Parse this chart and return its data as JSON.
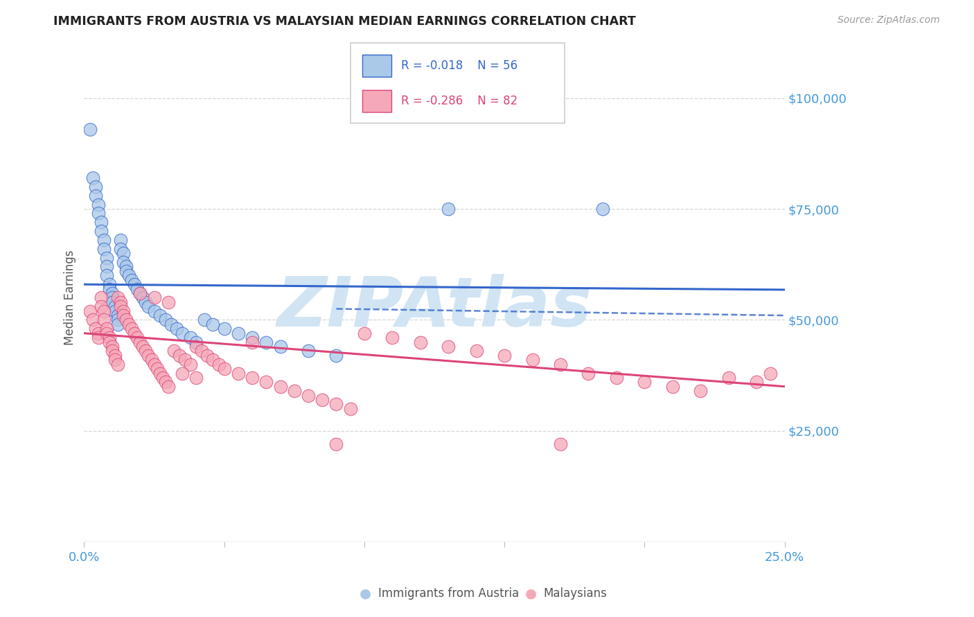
{
  "title": "IMMIGRANTS FROM AUSTRIA VS MALAYSIAN MEDIAN EARNINGS CORRELATION CHART",
  "source": "Source: ZipAtlas.com",
  "ylabel": "Median Earnings",
  "right_ytick_labels": [
    "$25,000",
    "$50,000",
    "$75,000",
    "$100,000"
  ],
  "right_ytick_values": [
    25000,
    50000,
    75000,
    100000
  ],
  "xlim": [
    0.0,
    0.25
  ],
  "ylim": [
    0,
    110000
  ],
  "austria_R": -0.018,
  "austria_N": 56,
  "malaysia_R": -0.286,
  "malaysia_N": 82,
  "austria_color": "#aac8e8",
  "austria_line_color": "#3366cc",
  "malaysia_color": "#f5a8b8",
  "malaysia_line_color": "#dd4477",
  "background_color": "#ffffff",
  "grid_color": "#cccccc",
  "title_color": "#222222",
  "axis_label_color": "#4499dd",
  "watermark_color": "#d0e4f4",
  "austria_x": [
    0.002,
    0.003,
    0.004,
    0.004,
    0.005,
    0.005,
    0.006,
    0.006,
    0.007,
    0.007,
    0.008,
    0.008,
    0.008,
    0.009,
    0.009,
    0.01,
    0.01,
    0.01,
    0.011,
    0.011,
    0.012,
    0.012,
    0.012,
    0.013,
    0.013,
    0.014,
    0.014,
    0.015,
    0.015,
    0.016,
    0.017,
    0.018,
    0.019,
    0.02,
    0.021,
    0.022,
    0.023,
    0.025,
    0.027,
    0.029,
    0.031,
    0.033,
    0.035,
    0.038,
    0.04,
    0.043,
    0.046,
    0.05,
    0.055,
    0.06,
    0.065,
    0.07,
    0.08,
    0.09,
    0.13,
    0.185
  ],
  "austria_y": [
    93000,
    82000,
    80000,
    78000,
    76000,
    74000,
    72000,
    70000,
    68000,
    66000,
    64000,
    62000,
    60000,
    58000,
    57000,
    56000,
    55000,
    54000,
    53000,
    52000,
    51000,
    50000,
    49000,
    68000,
    66000,
    65000,
    63000,
    62000,
    61000,
    60000,
    59000,
    58000,
    57000,
    56000,
    55000,
    54000,
    53000,
    52000,
    51000,
    50000,
    49000,
    48000,
    47000,
    46000,
    45000,
    50000,
    49000,
    48000,
    47000,
    46000,
    45000,
    44000,
    43000,
    42000,
    75000,
    75000
  ],
  "malaysia_x": [
    0.002,
    0.003,
    0.004,
    0.005,
    0.005,
    0.006,
    0.006,
    0.007,
    0.007,
    0.008,
    0.008,
    0.009,
    0.009,
    0.01,
    0.01,
    0.011,
    0.011,
    0.012,
    0.012,
    0.013,
    0.013,
    0.014,
    0.014,
    0.015,
    0.016,
    0.017,
    0.018,
    0.019,
    0.02,
    0.021,
    0.022,
    0.023,
    0.024,
    0.025,
    0.026,
    0.027,
    0.028,
    0.029,
    0.03,
    0.032,
    0.034,
    0.036,
    0.038,
    0.04,
    0.042,
    0.044,
    0.046,
    0.048,
    0.05,
    0.055,
    0.06,
    0.065,
    0.07,
    0.075,
    0.08,
    0.085,
    0.09,
    0.095,
    0.1,
    0.11,
    0.12,
    0.13,
    0.14,
    0.15,
    0.16,
    0.17,
    0.18,
    0.19,
    0.2,
    0.21,
    0.22,
    0.23,
    0.24,
    0.02,
    0.025,
    0.03,
    0.035,
    0.04,
    0.06,
    0.09,
    0.17,
    0.245
  ],
  "malaysia_y": [
    52000,
    50000,
    48000,
    47000,
    46000,
    55000,
    53000,
    52000,
    50000,
    48000,
    47000,
    46000,
    45000,
    44000,
    43000,
    42000,
    41000,
    40000,
    55000,
    54000,
    53000,
    52000,
    51000,
    50000,
    49000,
    48000,
    47000,
    46000,
    45000,
    44000,
    43000,
    42000,
    41000,
    40000,
    39000,
    38000,
    37000,
    36000,
    35000,
    43000,
    42000,
    41000,
    40000,
    44000,
    43000,
    42000,
    41000,
    40000,
    39000,
    38000,
    37000,
    36000,
    35000,
    34000,
    33000,
    32000,
    31000,
    30000,
    47000,
    46000,
    45000,
    44000,
    43000,
    42000,
    41000,
    40000,
    38000,
    37000,
    36000,
    35000,
    34000,
    37000,
    36000,
    56000,
    55000,
    54000,
    38000,
    37000,
    45000,
    22000,
    22000,
    38000
  ],
  "austria_line_x": [
    0.0,
    0.25
  ],
  "austria_line_y": [
    58000,
    56800
  ],
  "malaysia_line_x": [
    0.0,
    0.25
  ],
  "malaysia_line_y": [
    47000,
    35000
  ],
  "dashed_line_x": [
    0.09,
    0.25
  ],
  "dashed_line_y": [
    52500,
    51000
  ]
}
